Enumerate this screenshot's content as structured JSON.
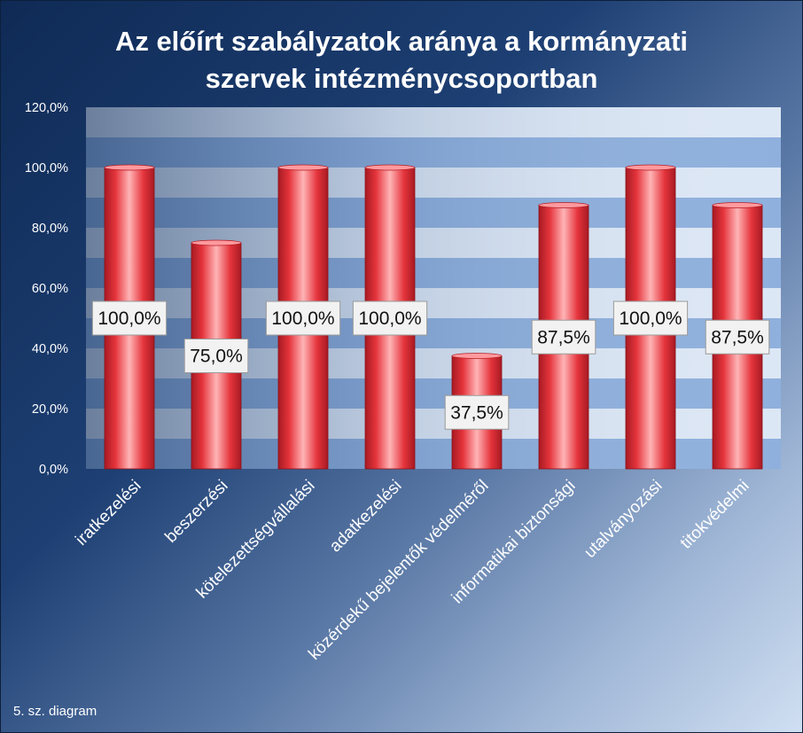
{
  "chart_data": {
    "type": "bar",
    "title": "Az előírt szabályzatok aránya a kormányzati szervek intézménycsoportban",
    "title_lines": [
      "Az előírt szabályzatok aránya a kormányzati",
      "szervek intézménycsoportban"
    ],
    "categories": [
      "iratkezelési",
      "beszerzési",
      "kötelezettségvállalási",
      "adatkezelési",
      "közérdekű bejelentők védelméről",
      "informatikai biztonsági",
      "utalványozási",
      "titokvédelmi"
    ],
    "values": [
      100.0,
      75.0,
      100.0,
      100.0,
      37.5,
      87.5,
      100.0,
      87.5
    ],
    "data_labels": [
      "100,0%",
      "75,0%",
      "100,0%",
      "100,0%",
      "37,5%",
      "87,5%",
      "100,0%",
      "87,5%"
    ],
    "y_ticks": [
      0,
      20,
      40,
      60,
      80,
      100,
      120
    ],
    "y_tick_labels": [
      "0,0%",
      "20,0%",
      "40,0%",
      "60,0%",
      "80,0%",
      "100,0%",
      "120,0%"
    ],
    "ylim": [
      0,
      120
    ],
    "xlabel": "",
    "ylabel": "",
    "legend": "none",
    "grid": true,
    "bar_color": "#e8343a",
    "band_colors": [
      "#8fb0dd",
      "#dce7f5"
    ]
  },
  "caption": "5. sz. diagram"
}
